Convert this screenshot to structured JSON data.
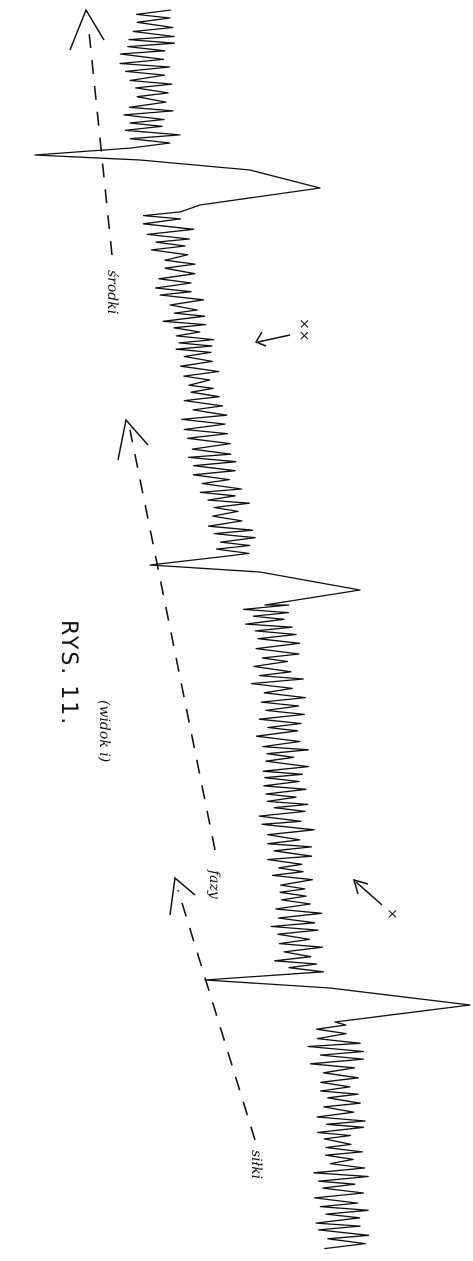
{
  "figure": {
    "title": "RYS. 11.",
    "subtitle": "(widok i)",
    "labels": [
      "środki",
      "fazy",
      "siłki"
    ],
    "marks": [
      "××",
      "×"
    ]
  }
}
